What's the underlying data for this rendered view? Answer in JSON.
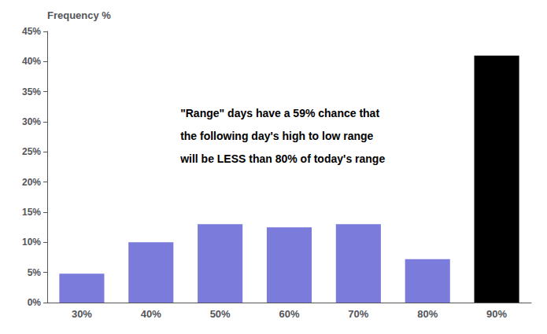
{
  "chart_data": {
    "type": "bar",
    "categories": [
      "30%",
      "40%",
      "50%",
      "60%",
      "70%",
      "80%",
      "90%"
    ],
    "values": [
      4.8,
      10.0,
      13.0,
      12.5,
      13.0,
      7.2,
      41.0
    ],
    "colors": [
      "#7b7bdb",
      "#7b7bdb",
      "#7b7bdb",
      "#7b7bdb",
      "#7b7bdb",
      "#7b7bdb",
      "#000000"
    ],
    "ylabel": "Frequency %",
    "ylim": [
      0,
      45
    ],
    "yticks": [
      {
        "value": 0,
        "label": "0%"
      },
      {
        "value": 5,
        "label": "5%"
      },
      {
        "value": 10,
        "label": "10%"
      },
      {
        "value": 15,
        "label": "15%"
      },
      {
        "value": 20,
        "label": "20%"
      },
      {
        "value": 25,
        "label": "25%"
      },
      {
        "value": 30,
        "label": "30%"
      },
      {
        "value": 35,
        "label": "35%"
      },
      {
        "value": 40,
        "label": "40%"
      },
      {
        "value": 45,
        "label": "45%"
      }
    ],
    "grid": false,
    "annotations": [
      "\"Range\" days have a 59% chance that",
      "the following day's high to low range",
      "will be LESS than 80% of today's range"
    ]
  }
}
